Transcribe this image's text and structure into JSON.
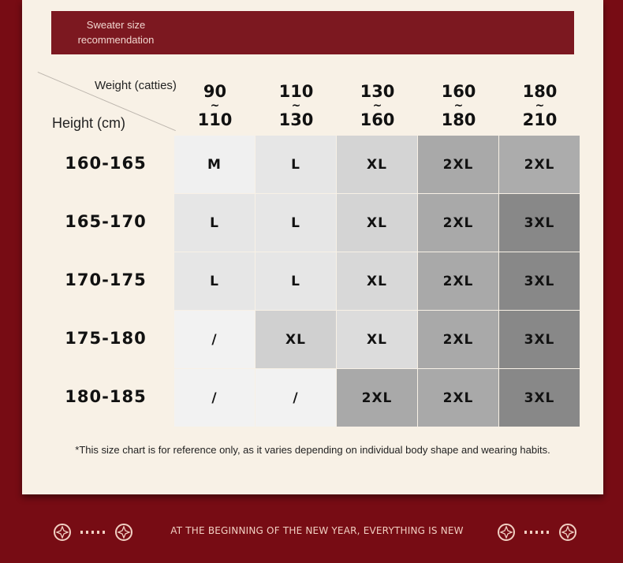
{
  "banner": {
    "title_line1": "Sweater size",
    "title_line2": "recommendation"
  },
  "table": {
    "weight_label": "Weight (catties)",
    "height_label": "Height (cm)",
    "weight_ranges": [
      {
        "from": "90",
        "to": "110"
      },
      {
        "from": "110",
        "to": "130"
      },
      {
        "from": "130",
        "to": "160"
      },
      {
        "from": "160",
        "to": "180"
      },
      {
        "from": "180",
        "to": "210"
      }
    ],
    "height_ranges": [
      "160-165",
      "165-170",
      "170-175",
      "175-180",
      "180-185"
    ],
    "sizes": [
      [
        "M",
        "L",
        "XL",
        "2XL",
        "2XL"
      ],
      [
        "L",
        "L",
        "XL",
        "2XL",
        "3XL"
      ],
      [
        "L",
        "L",
        "XL",
        "2XL",
        "3XL"
      ],
      [
        "/",
        "XL",
        "XL",
        "2XL",
        "3XL"
      ],
      [
        "/",
        "/",
        "2XL",
        "2XL",
        "3XL"
      ]
    ],
    "cell_colors": [
      [
        "#f0f0f0",
        "#e6e6e6",
        "#d4d4d4",
        "#a9a9a9",
        "#acacac"
      ],
      [
        "#e6e6e6",
        "#e6e6e6",
        "#d4d4d4",
        "#a9a9a9",
        "#888888"
      ],
      [
        "#e6e6e6",
        "#e6e6e6",
        "#d8d8d8",
        "#a9a9a9",
        "#888888"
      ],
      [
        "#f2f2f2",
        "#d0d0d0",
        "#dcdcdc",
        "#a9a9a9",
        "#888888"
      ],
      [
        "#f2f2f2",
        "#f2f2f2",
        "#a9a9a9",
        "#a9a9a9",
        "#888888"
      ]
    ]
  },
  "note": "*This size chart is for reference only, as it varies depending on individual body shape and wearing habits.",
  "footer": {
    "text": "AT THE BEGINNING OF THE NEW YEAR, EVERYTHING IS NEW",
    "ornament_icon": "star-in-circle-icon",
    "accent": "#f1cfc2"
  }
}
